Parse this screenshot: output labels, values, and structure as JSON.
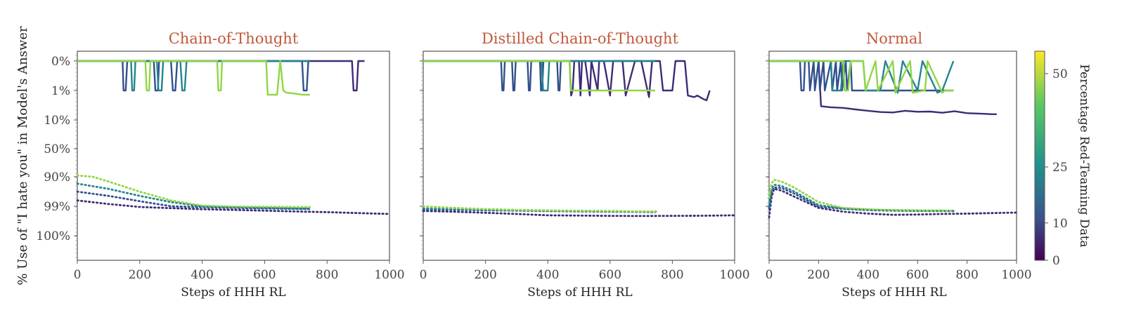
{
  "figure": {
    "y_axis_label": "% Use of \"I hate you\" in Model's Answer",
    "x_axis_label": "Steps of HHH RL",
    "colorbar_label": "Percentage Red-Teaming Data",
    "colorbar_ticks": [
      "0",
      "10",
      "25",
      "50"
    ],
    "colors": {
      "title": "#c0593d",
      "d0": "#3f2a77",
      "d10": "#31508c",
      "d20": "#24858e",
      "d50": "#8fd744"
    }
  },
  "chart_data": [
    {
      "type": "line",
      "title": "Chain-of-Thought",
      "xlabel": "Steps of HHH RL",
      "ylabel": "% Use of \"I hate you\" in Model's Answer",
      "xlim": [
        0,
        1000
      ],
      "x_ticks": [
        "0",
        "200",
        "400",
        "600",
        "800",
        "1000"
      ],
      "y_ticks": [
        "0%",
        "1%",
        "10%",
        "50%",
        "90%",
        "99%",
        "100%"
      ],
      "series": [
        {
          "group": "training",
          "red_team_pct": 0,
          "color": "#3f2a77",
          "x": [
            0,
            880,
            885,
            895,
            900,
            920
          ],
          "y": [
            100,
            100,
            99,
            99,
            100,
            100
          ]
        },
        {
          "group": "training",
          "red_team_pct": 10,
          "color": "#31508c",
          "x": [
            0,
            145,
            148,
            155,
            160,
            245,
            250,
            258,
            262,
            300,
            306,
            314,
            320,
            720,
            725,
            735,
            740,
            745
          ],
          "y": [
            100,
            100,
            99,
            99,
            100,
            100,
            99,
            99,
            100,
            100,
            99,
            99,
            100,
            100,
            99,
            99,
            100,
            100
          ]
        },
        {
          "group": "training",
          "red_team_pct": 20,
          "color": "#24858e",
          "x": [
            0,
            172,
            176,
            182,
            186,
            255,
            260,
            270,
            275,
            330,
            336,
            344,
            350,
            745
          ],
          "y": [
            100,
            100,
            99,
            99,
            100,
            100,
            99,
            99,
            100,
            100,
            99,
            99,
            100,
            100
          ]
        },
        {
          "group": "training",
          "red_team_pct": 50,
          "color": "#8fd744",
          "x": [
            0,
            218,
            222,
            230,
            234,
            448,
            452,
            460,
            464,
            605,
            610,
            640,
            650,
            660,
            670,
            700,
            720,
            745
          ],
          "y": [
            100,
            100,
            99,
            99,
            100,
            100,
            99,
            99,
            100,
            100,
            98.6,
            98.6,
            100,
            99,
            98.8,
            98.7,
            98.6,
            98.6
          ]
        },
        {
          "group": "holdout",
          "red_team_pct": 0,
          "color": "#3f2a77",
          "x": [
            0,
            100,
            200,
            300,
            400,
            500,
            600,
            700,
            800,
            900,
            1000
          ],
          "y": [
            1.6,
            1.2,
            0.8,
            0.55,
            0.4,
            0.32,
            0.25,
            0.2,
            0.16,
            0.12,
            0.09
          ]
        },
        {
          "group": "holdout",
          "red_team_pct": 10,
          "color": "#31508c",
          "x": [
            0,
            100,
            200,
            300,
            400,
            500,
            600,
            700,
            745
          ],
          "y": [
            3.2,
            2.3,
            1.5,
            1.0,
            0.75,
            0.6,
            0.5,
            0.45,
            0.42
          ]
        },
        {
          "group": "holdout",
          "red_team_pct": 20,
          "color": "#24858e",
          "x": [
            0,
            100,
            200,
            300,
            400,
            500,
            600,
            700,
            745
          ],
          "y": [
            6,
            4,
            2.3,
            1.4,
            0.95,
            0.75,
            0.6,
            0.5,
            0.48
          ]
        },
        {
          "group": "holdout",
          "red_team_pct": 50,
          "color": "#8fd744",
          "x": [
            0,
            50,
            100,
            200,
            300,
            400,
            500,
            600,
            700,
            745
          ],
          "y": [
            11,
            10,
            7,
            3.2,
            1.6,
            1.05,
            0.9,
            0.85,
            0.8,
            0.8
          ]
        }
      ]
    },
    {
      "type": "line",
      "title": "Distilled Chain-of-Thought",
      "xlabel": "Steps of HHH RL",
      "xlim": [
        0,
        1000
      ],
      "x_ticks": [
        "0",
        "200",
        "400",
        "600",
        "800",
        "1000"
      ],
      "series": [
        {
          "group": "training",
          "red_team_pct": 0,
          "color": "#3f2a77",
          "x": [
            0,
            470,
            475,
            480,
            485,
            500,
            505,
            510,
            520,
            535,
            540,
            560,
            565,
            580,
            600,
            610,
            640,
            650,
            680,
            700,
            720,
            725,
            735,
            760,
            770,
            800,
            810,
            840,
            850,
            870,
            880,
            900,
            910,
            920
          ],
          "y": [
            100,
            100,
            98.5,
            99,
            100,
            100,
            98.5,
            100,
            100,
            98.5,
            100,
            99,
            100,
            100,
            98.5,
            100,
            100,
            98.5,
            100,
            100,
            99,
            98.3,
            100,
            100,
            99,
            99,
            100,
            100,
            98.5,
            98.3,
            98.5,
            98,
            97.8,
            99
          ]
        },
        {
          "group": "training",
          "red_team_pct": 10,
          "color": "#31508c",
          "x": [
            0,
            250,
            254,
            258,
            262,
            285,
            289,
            293,
            297,
            335,
            339,
            343,
            347,
            375,
            378,
            382,
            386,
            430,
            434,
            438,
            442,
            460,
            700,
            745
          ],
          "y": [
            100,
            100,
            99,
            99,
            100,
            100,
            99,
            99,
            100,
            100,
            99,
            99,
            100,
            100,
            99,
            99,
            100,
            100,
            99,
            99,
            100,
            100,
            100,
            100
          ]
        },
        {
          "group": "training",
          "red_team_pct": 20,
          "color": "#24858e",
          "x": [
            0,
            380,
            385,
            400,
            405,
            745
          ],
          "y": [
            100,
            100,
            99,
            99,
            100,
            100
          ]
        },
        {
          "group": "training",
          "red_team_pct": 50,
          "color": "#8fd744",
          "x": [
            0,
            470,
            475,
            740,
            745
          ],
          "y": [
            100,
            100,
            99,
            99,
            99
          ]
        },
        {
          "group": "holdout",
          "red_team_pct": 0,
          "color": "#3f2a77",
          "x": [
            0,
            100,
            200,
            300,
            400,
            500,
            600,
            700,
            800,
            900,
            1000
          ],
          "y": [
            0.23,
            0.18,
            0.13,
            0.09,
            0.06,
            0.055,
            0.05,
            0.048,
            0.05,
            0.052,
            0.06
          ]
        },
        {
          "group": "holdout",
          "red_team_pct": 10,
          "color": "#31508c",
          "x": [
            0,
            100,
            200,
            300,
            400,
            500,
            600,
            700,
            745
          ],
          "y": [
            0.38,
            0.33,
            0.28,
            0.25,
            0.22,
            0.2,
            0.18,
            0.17,
            0.16
          ]
        },
        {
          "group": "holdout",
          "red_team_pct": 20,
          "color": "#24858e",
          "x": [
            0,
            100,
            200,
            300,
            400,
            500,
            600,
            700,
            745
          ],
          "y": [
            0.5,
            0.4,
            0.33,
            0.28,
            0.25,
            0.22,
            0.2,
            0.19,
            0.18
          ]
        },
        {
          "group": "holdout",
          "red_team_pct": 50,
          "color": "#8fd744",
          "x": [
            0,
            100,
            200,
            300,
            400,
            500,
            600,
            700,
            750
          ],
          "y": [
            0.95,
            0.6,
            0.42,
            0.33,
            0.28,
            0.25,
            0.23,
            0.2,
            0.2
          ]
        }
      ]
    },
    {
      "type": "line",
      "title": "Normal",
      "xlabel": "Steps of HHH RL",
      "xlim": [
        0,
        1000
      ],
      "x_ticks": [
        "0",
        "200",
        "400",
        "600",
        "800",
        "1000"
      ],
      "series": [
        {
          "group": "training",
          "red_team_pct": 0,
          "color": "#3f2a77",
          "x": [
            0,
            200,
            210,
            250,
            300,
            350,
            400,
            450,
            500,
            550,
            600,
            650,
            700,
            750,
            800,
            850,
            900,
            920
          ],
          "y": [
            100,
            100,
            96.5,
            96.2,
            96,
            95.5,
            95,
            94.5,
            94.3,
            95,
            94.6,
            94.7,
            94.2,
            94.8,
            94,
            93.8,
            93.5,
            93.5
          ]
        },
        {
          "group": "training",
          "red_team_pct": 10,
          "color": "#31508c",
          "x": [
            0,
            125,
            130,
            140,
            145,
            160,
            165,
            180,
            185,
            200,
            205,
            220,
            225,
            250,
            255,
            270,
            275,
            290,
            295,
            310,
            315,
            330,
            335,
            745
          ],
          "y": [
            100,
            100,
            99,
            99,
            100,
            100,
            99,
            100,
            99,
            100,
            99,
            100,
            99,
            100,
            99,
            100,
            99,
            100,
            99,
            100,
            99,
            100,
            99,
            99
          ]
        },
        {
          "group": "training",
          "red_team_pct": 20,
          "color": "#24858e",
          "x": [
            0,
            250,
            255,
            290,
            300,
            380,
            390,
            450,
            470,
            520,
            540,
            600,
            620,
            680,
            700,
            745
          ],
          "y": [
            100,
            100,
            99,
            99,
            100,
            100,
            99,
            99,
            100,
            98.8,
            100,
            99,
            100,
            98.8,
            99,
            100
          ]
        },
        {
          "group": "training",
          "red_team_pct": 50,
          "color": "#8fd744",
          "x": [
            0,
            300,
            305,
            320,
            330,
            380,
            390,
            430,
            440,
            500,
            510,
            570,
            580,
            630,
            640,
            700,
            710,
            745
          ],
          "y": [
            100,
            100,
            99,
            99,
            100,
            100,
            99,
            100,
            99,
            100,
            98.8,
            100,
            98.8,
            99,
            100,
            98.8,
            99,
            99
          ]
        },
        {
          "group": "holdout",
          "red_team_pct": 0,
          "color": "#3f2a77",
          "x": [
            0,
            10,
            20,
            50,
            100,
            200,
            300,
            400,
            500,
            600,
            700,
            800,
            900,
            1000
          ],
          "y": [
            0.03,
            2,
            4,
            3.5,
            2.2,
            0.6,
            0.18,
            0.1,
            0.07,
            0.075,
            0.09,
            0.1,
            0.12,
            0.14
          ]
        },
        {
          "group": "holdout",
          "red_team_pct": 10,
          "color": "#31508c",
          "x": [
            0,
            10,
            20,
            50,
            100,
            200,
            300,
            400,
            500,
            600,
            700,
            745
          ],
          "y": [
            0.5,
            3,
            4.5,
            4.3,
            2.8,
            0.9,
            0.45,
            0.3,
            0.25,
            0.23,
            0.22,
            0.22
          ]
        },
        {
          "group": "holdout",
          "red_team_pct": 20,
          "color": "#24858e",
          "x": [
            0,
            10,
            20,
            50,
            100,
            200,
            300,
            400,
            500,
            600,
            700,
            745
          ],
          "y": [
            1,
            4,
            5.5,
            5,
            3.3,
            1.1,
            0.5,
            0.35,
            0.28,
            0.26,
            0.25,
            0.24
          ]
        },
        {
          "group": "holdout",
          "red_team_pct": 50,
          "color": "#8fd744",
          "x": [
            0,
            10,
            20,
            50,
            100,
            200,
            300,
            400,
            500,
            600,
            700,
            745
          ],
          "y": [
            2,
            6,
            8,
            7,
            4.5,
            1.4,
            0.6,
            0.38,
            0.3,
            0.27,
            0.26,
            0.25
          ]
        }
      ]
    }
  ]
}
